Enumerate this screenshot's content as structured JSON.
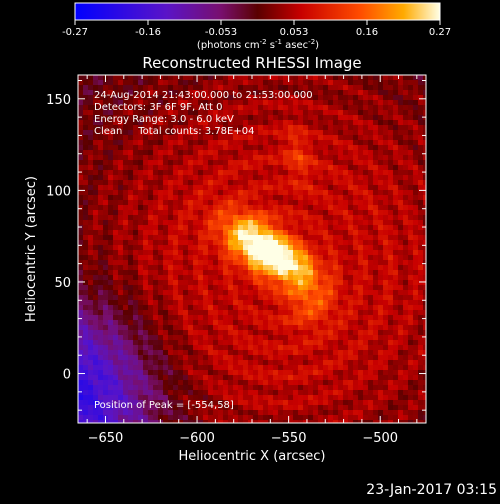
{
  "colorbar": {
    "ticks": [
      "-0.27",
      "-0.16",
      "-0.053",
      "0.053",
      "0.16",
      "0.27"
    ],
    "units_main": "(photons cm",
    "units_exp1": "-2",
    "units_mid": " s",
    "units_exp2": "-1",
    "units_end": " asec",
    "units_exp3": "-2",
    "units_close": ")"
  },
  "title": "Reconstructed RHESSI Image",
  "info": {
    "line1": "24-Aug-2014 21:43:00.000 to 21:53:00.000",
    "line2": "Detectors: 3F 6F 9F, Att 0",
    "line3": "Energy Range: 3.0 - 6.0 keV",
    "line4": "Clean     Total counts: 3.78E+04"
  },
  "peak_label": "Position of Peak = [-554,58]",
  "timestamp": "23-Jan-2017 03:15",
  "chart_data": {
    "type": "heatmap",
    "title": "Reconstructed RHESSI Image",
    "xlabel": "Heliocentric X (arcsec)",
    "ylabel": "Heliocentric Y (arcsec)",
    "xlim": [
      -665,
      -475
    ],
    "ylim": [
      -27,
      163
    ],
    "xticks": [
      -650,
      -600,
      -550,
      -500
    ],
    "yticks": [
      0,
      50,
      100,
      150
    ],
    "xtick_labels": [
      "−650",
      "−600",
      "−550",
      "−500"
    ],
    "ytick_labels": [
      "0",
      "50",
      "100",
      "150"
    ],
    "colorscale": {
      "min": -0.27,
      "max": 0.27,
      "name": "red-temperature"
    },
    "peak": {
      "x": -554,
      "y": 58
    },
    "sources": [
      {
        "x": -566,
        "y": 70,
        "sx": 16,
        "sy": 9,
        "angle": -35,
        "amp": 0.24
      },
      {
        "x": -550,
        "y": 60,
        "sx": 10,
        "sy": 7,
        "angle": -20,
        "amp": 0.1
      },
      {
        "x": -538,
        "y": 42,
        "sx": 10,
        "sy": 12,
        "angle": 0,
        "amp": 0.09
      },
      {
        "x": -545,
        "y": 120,
        "sx": 5,
        "sy": 12,
        "angle": 10,
        "amp": 0.06
      }
    ]
  }
}
